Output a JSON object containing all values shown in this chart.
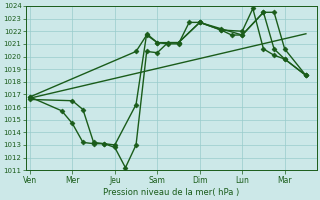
{
  "title": "",
  "xlabel": "Pression niveau de la mer( hPa )",
  "bg_color": "#cce8e8",
  "grid_color": "#99cccc",
  "line_color": "#1a5c1a",
  "xtick_labels": [
    "Ven",
    "Mer",
    "Jeu",
    "Sam",
    "Dim",
    "Lun",
    "Mar"
  ],
  "xtick_positions": [
    0,
    2,
    4,
    6,
    8,
    10,
    12
  ],
  "ylim": [
    1011,
    1024
  ],
  "yticks": [
    1011,
    1012,
    1013,
    1014,
    1015,
    1016,
    1017,
    1018,
    1019,
    1020,
    1021,
    1022,
    1023,
    1024
  ],
  "xlim": [
    -0.2,
    13.5
  ],
  "series": [
    {
      "x": [
        0,
        1.5,
        2,
        2.5,
        3,
        3.5,
        4,
        5,
        5.5,
        6,
        6.5,
        7,
        7.5,
        8,
        9,
        9.5,
        10,
        11,
        11.5,
        12,
        13
      ],
      "y": [
        1016.8,
        1015.7,
        1014.7,
        1013.2,
        1013.1,
        1013.1,
        1013.0,
        1016.2,
        1021.8,
        1021.1,
        1021.0,
        1021.0,
        1022.7,
        1022.7,
        1022.1,
        1021.7,
        1021.7,
        1023.5,
        1020.6,
        1019.8,
        1018.5
      ],
      "marker": "D",
      "markersize": 2.5,
      "linewidth": 1.0
    },
    {
      "x": [
        0,
        13
      ],
      "y": [
        1016.7,
        1021.8
      ],
      "marker": null,
      "markersize": 0,
      "linewidth": 1.0
    },
    {
      "x": [
        0,
        2,
        2.5,
        3,
        3.5,
        4,
        4.5,
        5,
        5.5,
        6,
        6.5,
        7,
        8,
        9,
        10,
        10.5,
        11,
        11.5,
        12,
        13
      ],
      "y": [
        1016.6,
        1016.5,
        1015.8,
        1013.2,
        1013.1,
        1012.8,
        1011.2,
        1013.0,
        1020.4,
        1020.3,
        1021.1,
        1021.1,
        1022.7,
        1022.1,
        1022.0,
        1023.8,
        1020.6,
        1020.1,
        1019.8,
        1018.5
      ],
      "marker": "D",
      "markersize": 2.5,
      "linewidth": 1.0
    },
    {
      "x": [
        0,
        5,
        5.5,
        6,
        7,
        8,
        9,
        10,
        11,
        11.5,
        12,
        13
      ],
      "y": [
        1016.8,
        1020.4,
        1021.7,
        1021.1,
        1021.1,
        1022.7,
        1022.2,
        1021.7,
        1023.5,
        1023.5,
        1020.6,
        1018.5
      ],
      "marker": "D",
      "markersize": 2.5,
      "linewidth": 1.0
    }
  ]
}
